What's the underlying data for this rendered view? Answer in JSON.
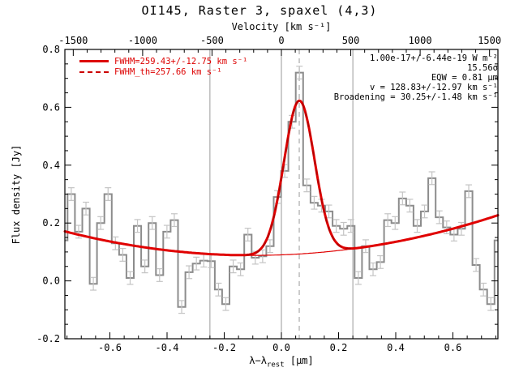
{
  "title": "OI145, Raster 3, spaxel (4,3)",
  "legend": {
    "fit_label": "FWHM=259.43+/-12.75 km s⁻¹",
    "th_label": "FWHM_th=257.66 km s⁻¹"
  },
  "annotations": [
    "1.00e-17+/-6.44e-19 W m⁻²",
    "15.56σ",
    "EQW = 0.81 μm",
    "v = 128.83+/-12.97 km s⁻¹",
    "Broadening = 30.25+/-1.48 km s⁻¹"
  ],
  "axes": {
    "top": {
      "label": "Velocity [km s⁻¹]",
      "major_ticks": [
        {
          "v": -1500,
          "label": "-1500"
        },
        {
          "v": -1000,
          "label": "-1000"
        },
        {
          "v": -500,
          "label": "-500"
        },
        {
          "v": 0,
          "label": "0"
        },
        {
          "v": 500,
          "label": "500"
        },
        {
          "v": 1000,
          "label": "1000"
        },
        {
          "v": 1500,
          "label": "1500"
        }
      ],
      "minor_step": 100
    },
    "bottom": {
      "label_pre": "λ−λ",
      "label_sub": "rest",
      "label_post": " [μm]",
      "major_ticks": [
        {
          "v": -0.6,
          "label": "-0.6"
        },
        {
          "v": -0.4,
          "label": "-0.4"
        },
        {
          "v": -0.2,
          "label": "-0.2"
        },
        {
          "v": 0.0,
          "label": "0.0"
        },
        {
          "v": 0.2,
          "label": "0.2"
        },
        {
          "v": 0.4,
          "label": "0.4"
        },
        {
          "v": 0.6,
          "label": "0.6"
        }
      ],
      "minor_step": 0.05,
      "range": [
        -0.7575,
        0.7575
      ]
    },
    "left": {
      "label": "Flux density [Jy]",
      "major_ticks": [
        {
          "v": -0.2,
          "label": "-0.2"
        },
        {
          "v": 0.0,
          "label": "0.0"
        },
        {
          "v": 0.2,
          "label": "0.2"
        },
        {
          "v": 0.4,
          "label": "0.4"
        },
        {
          "v": 0.6,
          "label": "0.6"
        },
        {
          "v": 0.8,
          "label": "0.8"
        }
      ],
      "minor_step": 0.05,
      "range": [
        -0.2,
        0.8
      ]
    }
  },
  "colors": {
    "histogram": "#8c8c8c",
    "error_bar": "#c4c4c4",
    "fit_curve": "#e00000",
    "fit_theoretical": "#b00000",
    "continuum": "#e00000",
    "ref_line": "#9a9a9a",
    "ref_line_dashed": "#aaaaaa",
    "frame": "#000000",
    "legend_text": "#dd0000"
  },
  "chart_data": {
    "type": "line",
    "style": "step-histogram spectrum with gaussian fit",
    "title": "OI145, Raster 3, spaxel (4,3)",
    "xlabel": "λ−λrest [μm]",
    "ylabel": "Flux density [Jy]",
    "x2label": "Velocity [km s⁻¹]",
    "xlim": [
      -0.7575,
      0.7575
    ],
    "ylim": [
      -0.2,
      0.8
    ],
    "um_per_kms": 0.0004854,
    "flux_err": 0.022,
    "hist": {
      "lambda_start": -0.748,
      "bin_width": 0.02575,
      "pre_value": 0.14,
      "post_value": 0.14,
      "values": [
        0.3,
        0.17,
        0.25,
        -0.01,
        0.2,
        0.3,
        0.13,
        0.09,
        0.01,
        0.19,
        0.05,
        0.2,
        0.02,
        0.17,
        0.21,
        -0.09,
        0.03,
        0.06,
        0.07,
        0.068,
        -0.03,
        -0.08,
        0.05,
        0.04,
        0.16,
        0.08,
        0.085,
        0.12,
        0.29,
        0.38,
        0.55,
        0.72,
        0.33,
        0.27,
        0.26,
        0.24,
        0.19,
        0.18,
        0.19,
        0.01,
        0.12,
        0.04,
        0.065,
        0.21,
        0.2,
        0.285,
        0.26,
        0.19,
        0.24,
        0.355,
        0.22,
        0.185,
        0.16,
        0.18,
        0.31,
        0.055,
        -0.03,
        -0.08
      ]
    },
    "continuum_poly": {
      "c0": 0.09,
      "c1": 0.0368,
      "c2": 0.19
    },
    "gaussian_fit": {
      "center_um": 0.0625,
      "sigma_um": 0.0535,
      "amplitude_jy": 0.53,
      "fwhm_kms": 259.43,
      "fwhm_err_kms": 12.75
    },
    "gaussian_th": {
      "center_um": 0.0625,
      "sigma_um": 0.0531,
      "amplitude_jy": 0.53,
      "fwhm_kms": 257.66
    },
    "ref_lines_um": {
      "solid": [
        -0.25,
        0.0,
        0.25
      ],
      "dashed": [
        0.0625
      ]
    }
  }
}
